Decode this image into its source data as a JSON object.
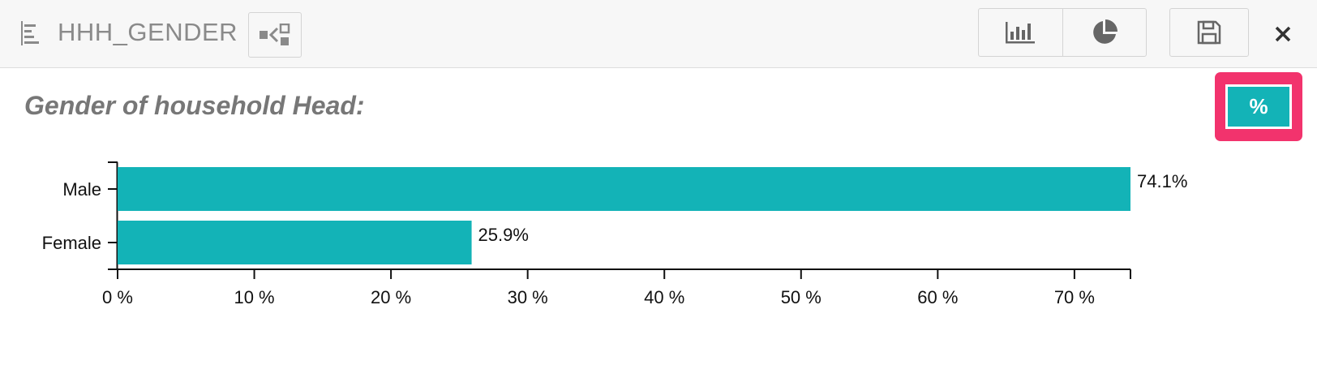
{
  "header": {
    "title": "HHH_GENDER",
    "title_icon": "question-list-icon",
    "relations_icon": "relations-icon",
    "bar_chart_icon": "bar-chart-icon",
    "pie_chart_icon": "pie-chart-icon",
    "save_icon": "save-icon",
    "close_glyph": "✕"
  },
  "question": {
    "title": "Gender of household Head:"
  },
  "percent_toggle": {
    "label": "%",
    "active": true
  },
  "colors": {
    "bar": "#13b3b7",
    "highlight": "#f2336d",
    "header_bg": "#f7f7f7",
    "icon_gray": "#8a8a8a"
  },
  "chart_data": {
    "type": "bar",
    "orientation": "horizontal",
    "categories": [
      "Male",
      "Female"
    ],
    "values": [
      74.1,
      25.9
    ],
    "value_labels": [
      "74.1%",
      "25.9%"
    ],
    "x_ticks": [
      0,
      10,
      20,
      30,
      40,
      50,
      60,
      70
    ],
    "x_tick_labels": [
      "0 %",
      "10 %",
      "20 %",
      "30 %",
      "40 %",
      "50 %",
      "60 %",
      "70 %"
    ],
    "xlim": [
      0,
      74.1
    ],
    "title": "",
    "xlabel": "",
    "ylabel": "",
    "grid": false
  }
}
